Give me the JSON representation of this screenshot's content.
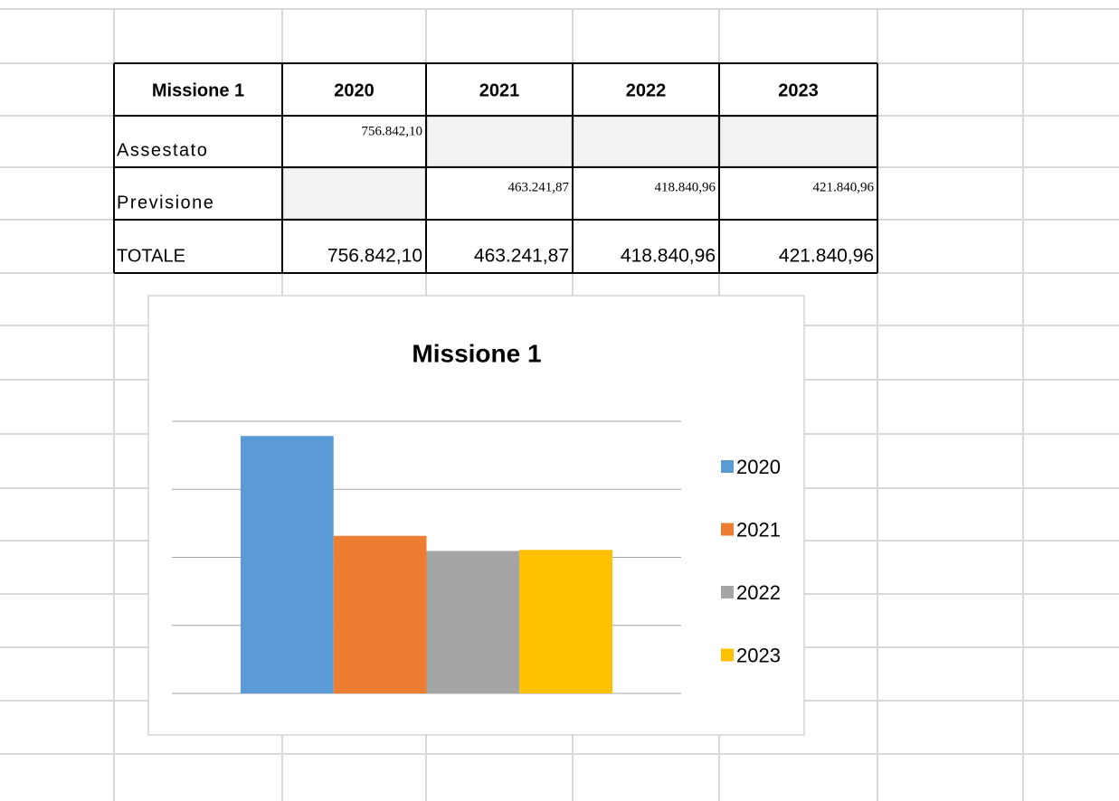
{
  "table": {
    "header": [
      "Missione 1",
      "2020",
      "2021",
      "2022",
      "2023"
    ],
    "rows": [
      [
        "Assestato",
        "756.842,10",
        null,
        null,
        null
      ],
      [
        "Previsione",
        null,
        "463.241,87",
        "418.840,96",
        "421.840,96"
      ],
      [
        "TOTALE",
        "756.842,10",
        "463.241,87",
        "418.840,96",
        "421.840,96"
      ]
    ]
  },
  "chart_data": {
    "type": "bar",
    "title": "Missione 1",
    "categories": [
      null
    ],
    "series": [
      {
        "name": "2020",
        "color": "#5b9bd5",
        "values": [
          756842.1
        ]
      },
      {
        "name": "2021",
        "color": "#ed7d31",
        "values": [
          463241.87
        ]
      },
      {
        "name": "2022",
        "color": "#a5a5a5",
        "values": [
          418840.96
        ]
      },
      {
        "name": "2023",
        "color": "#ffc000",
        "values": [
          421840.96
        ]
      }
    ],
    "ylim": [
      0,
      800000
    ],
    "yticks": [
      0,
      200000,
      400000,
      600000,
      800000
    ],
    "grid": true,
    "legend": "right"
  }
}
